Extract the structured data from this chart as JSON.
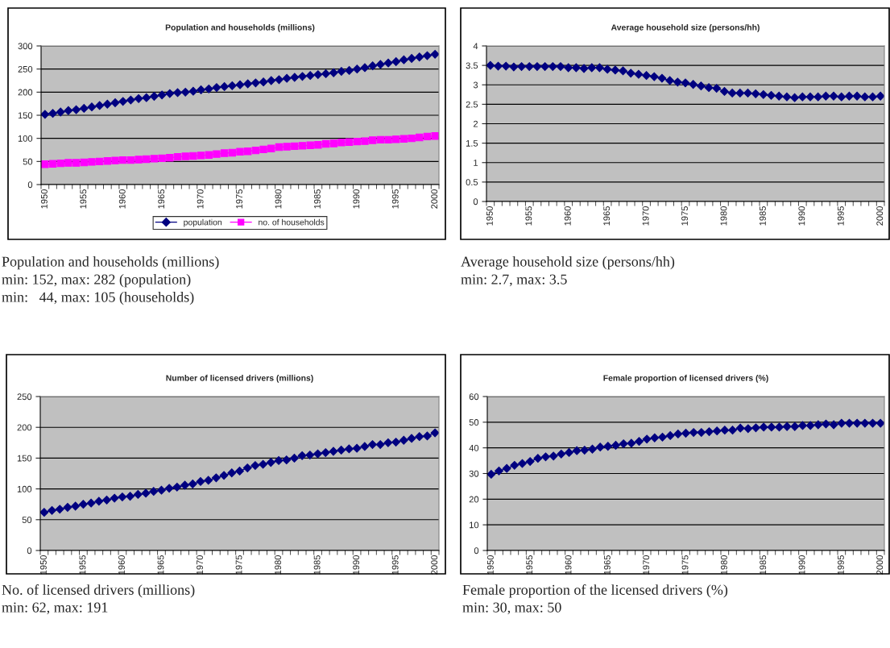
{
  "chart_data": [
    {
      "type": "line",
      "title": "Population and households (millions)",
      "categories": [
        "1950",
        null,
        null,
        null,
        null,
        "1955",
        null,
        null,
        null,
        null,
        "1960",
        null,
        null,
        null,
        null,
        "1965",
        null,
        null,
        null,
        null,
        "1970",
        null,
        null,
        null,
        null,
        "1975",
        null,
        null,
        null,
        null,
        "1980",
        null,
        null,
        null,
        null,
        "1985",
        null,
        null,
        null,
        null,
        "1990",
        null,
        null,
        null,
        null,
        "1995",
        null,
        null,
        null,
        null,
        "2000"
      ],
      "series": [
        {
          "name": "population",
          "color": "#000080",
          "marker": "diamond",
          "values": [
            152,
            154,
            157,
            160,
            162,
            165,
            168,
            171,
            174,
            177,
            180,
            183,
            186,
            188,
            191,
            194,
            197,
            199,
            200,
            202,
            205,
            207,
            210,
            212,
            214,
            216,
            218,
            220,
            222,
            225,
            227,
            230,
            232,
            234,
            236,
            238,
            240,
            242,
            245,
            247,
            250,
            253,
            257,
            260,
            263,
            266,
            270,
            273,
            276,
            279,
            282
          ]
        },
        {
          "name": "no. of households",
          "color": "#ff00ff",
          "marker": "square",
          "values": [
            44,
            45,
            46,
            47,
            47,
            48,
            49,
            50,
            51,
            52,
            53,
            53,
            54,
            55,
            56,
            57,
            58,
            60,
            61,
            62,
            63,
            64,
            66,
            68,
            69,
            71,
            72,
            74,
            76,
            78,
            81,
            82,
            83,
            84,
            85,
            86,
            88,
            89,
            91,
            92,
            93,
            94,
            96,
            97,
            97,
            98,
            99,
            100,
            102,
            104,
            105
          ]
        }
      ],
      "ylim": [
        0,
        300
      ],
      "yticks": [
        0,
        50,
        100,
        150,
        200,
        250,
        300
      ],
      "grid": "y",
      "legend": "bottom",
      "line_style": "solid",
      "annotations": [
        "Population and households (millions)",
        "min: 152, max: 282 (population)",
        "min:   44, max: 105 (households)"
      ]
    },
    {
      "type": "line",
      "title": "Average household size (persons/hh)",
      "categories": [
        "1950",
        null,
        null,
        null,
        null,
        "1955",
        null,
        null,
        null,
        null,
        "1960",
        null,
        null,
        null,
        null,
        "1965",
        null,
        null,
        null,
        null,
        "1970",
        null,
        null,
        null,
        null,
        "1975",
        null,
        null,
        null,
        null,
        "1980",
        null,
        null,
        null,
        null,
        "1985",
        null,
        null,
        null,
        null,
        "1990",
        null,
        null,
        null,
        null,
        "1995",
        null,
        null,
        null,
        null,
        "2000"
      ],
      "series": [
        {
          "color": "#000080",
          "marker": "diamond",
          "values": [
            3.5,
            3.48,
            3.48,
            3.46,
            3.47,
            3.47,
            3.47,
            3.47,
            3.47,
            3.47,
            3.44,
            3.44,
            3.42,
            3.44,
            3.44,
            3.4,
            3.38,
            3.36,
            3.3,
            3.27,
            3.24,
            3.21,
            3.17,
            3.11,
            3.07,
            3.05,
            3.01,
            2.97,
            2.93,
            2.91,
            2.83,
            2.79,
            2.79,
            2.79,
            2.77,
            2.75,
            2.73,
            2.71,
            2.69,
            2.67,
            2.69,
            2.69,
            2.69,
            2.71,
            2.71,
            2.69,
            2.71,
            2.71,
            2.69,
            2.69,
            2.71
          ]
        }
      ],
      "ylim": [
        0,
        4
      ],
      "yticks": [
        0,
        0.5,
        1,
        1.5,
        2,
        2.5,
        3,
        3.5,
        4
      ],
      "grid": "y",
      "line_style": "solid",
      "annotations": [
        "Average household size (persons/hh)",
        "min: 2.7, max: 3.5"
      ]
    },
    {
      "type": "line",
      "title": "Number of licensed drivers (millions)",
      "categories": [
        "1950",
        null,
        null,
        null,
        null,
        "1955",
        null,
        null,
        null,
        null,
        "1960",
        null,
        null,
        null,
        null,
        "1965",
        null,
        null,
        null,
        null,
        "1970",
        null,
        null,
        null,
        null,
        "1975",
        null,
        null,
        null,
        null,
        "1980",
        null,
        null,
        null,
        null,
        "1985",
        null,
        null,
        null,
        null,
        "1990",
        null,
        null,
        null,
        null,
        "1995",
        null,
        null,
        null,
        null,
        "2000"
      ],
      "series": [
        {
          "color": "#000080",
          "marker": "diamond",
          "values": [
            62,
            65,
            67,
            70,
            72,
            75,
            77,
            80,
            82,
            85,
            87,
            88,
            91,
            93,
            96,
            98,
            101,
            103,
            106,
            108,
            112,
            114,
            118,
            122,
            126,
            129,
            134,
            138,
            140,
            143,
            146,
            147,
            150,
            154,
            155,
            157,
            159,
            161,
            163,
            165,
            166,
            169,
            172,
            172,
            175,
            176,
            179,
            182,
            185,
            186,
            191
          ]
        }
      ],
      "ylim": [
        0,
        250
      ],
      "yticks": [
        0,
        50,
        100,
        150,
        200,
        250
      ],
      "grid": "y",
      "line_style": "solid",
      "annotations": [
        "No. of licensed drivers (millions)",
        "min: 62, max: 191"
      ]
    },
    {
      "type": "line",
      "title": "Female proportion of licensed drivers (%)",
      "categories": [
        "1950",
        null,
        null,
        null,
        null,
        "1955",
        null,
        null,
        null,
        null,
        "1960",
        null,
        null,
        null,
        null,
        "1965",
        null,
        null,
        null,
        null,
        "1970",
        null,
        null,
        null,
        null,
        "1975",
        null,
        null,
        null,
        null,
        "1980",
        null,
        null,
        null,
        null,
        "1985",
        null,
        null,
        null,
        null,
        "1990",
        null,
        null,
        null,
        null,
        "1995",
        null,
        null,
        null,
        null,
        "2000"
      ],
      "series": [
        {
          "color": "#000080",
          "marker": "diamond",
          "values": [
            29.7,
            31,
            32,
            33.2,
            33.9,
            34.7,
            35.9,
            36.5,
            36.8,
            37.6,
            38.2,
            38.9,
            39.1,
            39.5,
            40.3,
            40.6,
            41,
            41.6,
            41.8,
            42.5,
            43.4,
            43.9,
            44.2,
            44.8,
            45.4,
            45.7,
            46,
            46,
            46.3,
            46.6,
            46.9,
            46.9,
            47.7,
            47.5,
            47.8,
            48.1,
            48.1,
            48.1,
            48.3,
            48.3,
            48.7,
            48.7,
            49,
            49.3,
            49,
            49.6,
            49.6,
            49.6,
            49.6,
            49.6,
            49.6
          ]
        }
      ],
      "ylim": [
        0,
        60
      ],
      "yticks": [
        0,
        10,
        20,
        30,
        40,
        50,
        60
      ],
      "grid": "y",
      "line_style": "solid",
      "annotations": [
        "Female proportion of the licensed drivers (%)",
        "min: 30, max: 50"
      ]
    }
  ]
}
